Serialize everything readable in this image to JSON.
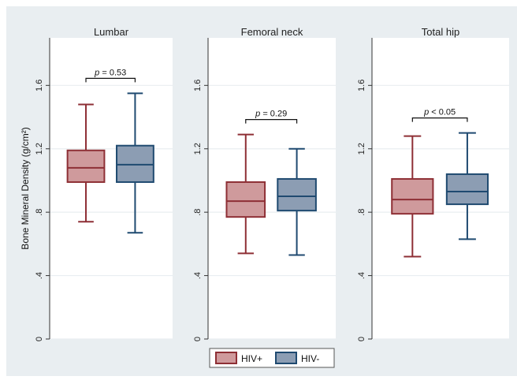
{
  "chart_data": {
    "type": "box",
    "ylabel": "Bone Mineral Density (g/cm²)",
    "ylim": [
      0,
      1.9
    ],
    "y_ticks": [
      0,
      0.4,
      0.8,
      1.2,
      1.6
    ],
    "y_tick_labels": [
      "0",
      ".4",
      ".8",
      "1.2",
      "1.6"
    ],
    "grid": true,
    "legend_position": "bottom-center",
    "colors": {
      "HIV+": {
        "fill": "#cf9a9c",
        "stroke": "#8e2f35"
      },
      "HIV-": {
        "fill": "#8c9db3",
        "stroke": "#1f4a70"
      },
      "outer_background": "#e9eef1",
      "plot_background": "#ffffff",
      "grid": "#e9eef1"
    },
    "series_names": [
      "HIV+",
      "HIV-"
    ],
    "panels": [
      {
        "title": "Lumbar",
        "annotation": {
          "prefix": "p",
          "text": " = 0.53"
        },
        "boxes": [
          {
            "group": "HIV+",
            "min": 0.74,
            "q1": 0.99,
            "median": 1.08,
            "q3": 1.19,
            "max": 1.48
          },
          {
            "group": "HIV-",
            "min": 0.67,
            "q1": 0.99,
            "median": 1.1,
            "q3": 1.22,
            "max": 1.55
          }
        ]
      },
      {
        "title": "Femoral neck",
        "annotation": {
          "prefix": "p",
          "text": " = 0.29"
        },
        "boxes": [
          {
            "group": "HIV+",
            "min": 0.54,
            "q1": 0.77,
            "median": 0.87,
            "q3": 0.99,
            "max": 1.29
          },
          {
            "group": "HIV-",
            "min": 0.53,
            "q1": 0.81,
            "median": 0.9,
            "q3": 1.01,
            "max": 1.2
          }
        ]
      },
      {
        "title": "Total hip",
        "annotation": {
          "prefix": "p",
          "text": " < 0.05"
        },
        "boxes": [
          {
            "group": "HIV+",
            "min": 0.52,
            "q1": 0.79,
            "median": 0.88,
            "q3": 1.01,
            "max": 1.28
          },
          {
            "group": "HIV-",
            "min": 0.63,
            "q1": 0.85,
            "median": 0.93,
            "q3": 1.04,
            "max": 1.3
          }
        ]
      }
    ]
  }
}
